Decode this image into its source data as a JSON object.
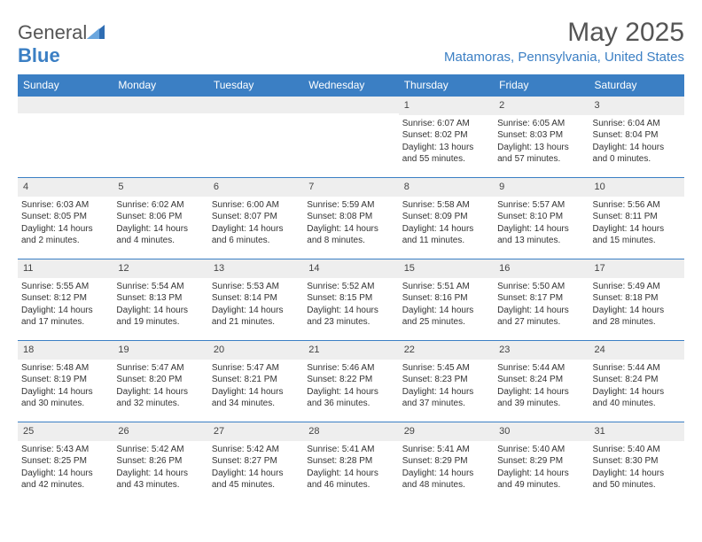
{
  "brand": {
    "name_part1": "General",
    "name_part2": "Blue"
  },
  "title": {
    "month": "May 2025",
    "location": "Matamoras, Pennsylvania, United States"
  },
  "colors": {
    "accent": "#3b7fc4",
    "header_text": "#ffffff",
    "daynum_bg": "#eeeeee",
    "text": "#333333"
  },
  "daynames": [
    "Sunday",
    "Monday",
    "Tuesday",
    "Wednesday",
    "Thursday",
    "Friday",
    "Saturday"
  ],
  "weeks": [
    [
      {
        "n": "",
        "sunrise": "",
        "sunset": "",
        "daylight": ""
      },
      {
        "n": "",
        "sunrise": "",
        "sunset": "",
        "daylight": ""
      },
      {
        "n": "",
        "sunrise": "",
        "sunset": "",
        "daylight": ""
      },
      {
        "n": "",
        "sunrise": "",
        "sunset": "",
        "daylight": ""
      },
      {
        "n": "1",
        "sunrise": "Sunrise: 6:07 AM",
        "sunset": "Sunset: 8:02 PM",
        "daylight": "Daylight: 13 hours and 55 minutes."
      },
      {
        "n": "2",
        "sunrise": "Sunrise: 6:05 AM",
        "sunset": "Sunset: 8:03 PM",
        "daylight": "Daylight: 13 hours and 57 minutes."
      },
      {
        "n": "3",
        "sunrise": "Sunrise: 6:04 AM",
        "sunset": "Sunset: 8:04 PM",
        "daylight": "Daylight: 14 hours and 0 minutes."
      }
    ],
    [
      {
        "n": "4",
        "sunrise": "Sunrise: 6:03 AM",
        "sunset": "Sunset: 8:05 PM",
        "daylight": "Daylight: 14 hours and 2 minutes."
      },
      {
        "n": "5",
        "sunrise": "Sunrise: 6:02 AM",
        "sunset": "Sunset: 8:06 PM",
        "daylight": "Daylight: 14 hours and 4 minutes."
      },
      {
        "n": "6",
        "sunrise": "Sunrise: 6:00 AM",
        "sunset": "Sunset: 8:07 PM",
        "daylight": "Daylight: 14 hours and 6 minutes."
      },
      {
        "n": "7",
        "sunrise": "Sunrise: 5:59 AM",
        "sunset": "Sunset: 8:08 PM",
        "daylight": "Daylight: 14 hours and 8 minutes."
      },
      {
        "n": "8",
        "sunrise": "Sunrise: 5:58 AM",
        "sunset": "Sunset: 8:09 PM",
        "daylight": "Daylight: 14 hours and 11 minutes."
      },
      {
        "n": "9",
        "sunrise": "Sunrise: 5:57 AM",
        "sunset": "Sunset: 8:10 PM",
        "daylight": "Daylight: 14 hours and 13 minutes."
      },
      {
        "n": "10",
        "sunrise": "Sunrise: 5:56 AM",
        "sunset": "Sunset: 8:11 PM",
        "daylight": "Daylight: 14 hours and 15 minutes."
      }
    ],
    [
      {
        "n": "11",
        "sunrise": "Sunrise: 5:55 AM",
        "sunset": "Sunset: 8:12 PM",
        "daylight": "Daylight: 14 hours and 17 minutes."
      },
      {
        "n": "12",
        "sunrise": "Sunrise: 5:54 AM",
        "sunset": "Sunset: 8:13 PM",
        "daylight": "Daylight: 14 hours and 19 minutes."
      },
      {
        "n": "13",
        "sunrise": "Sunrise: 5:53 AM",
        "sunset": "Sunset: 8:14 PM",
        "daylight": "Daylight: 14 hours and 21 minutes."
      },
      {
        "n": "14",
        "sunrise": "Sunrise: 5:52 AM",
        "sunset": "Sunset: 8:15 PM",
        "daylight": "Daylight: 14 hours and 23 minutes."
      },
      {
        "n": "15",
        "sunrise": "Sunrise: 5:51 AM",
        "sunset": "Sunset: 8:16 PM",
        "daylight": "Daylight: 14 hours and 25 minutes."
      },
      {
        "n": "16",
        "sunrise": "Sunrise: 5:50 AM",
        "sunset": "Sunset: 8:17 PM",
        "daylight": "Daylight: 14 hours and 27 minutes."
      },
      {
        "n": "17",
        "sunrise": "Sunrise: 5:49 AM",
        "sunset": "Sunset: 8:18 PM",
        "daylight": "Daylight: 14 hours and 28 minutes."
      }
    ],
    [
      {
        "n": "18",
        "sunrise": "Sunrise: 5:48 AM",
        "sunset": "Sunset: 8:19 PM",
        "daylight": "Daylight: 14 hours and 30 minutes."
      },
      {
        "n": "19",
        "sunrise": "Sunrise: 5:47 AM",
        "sunset": "Sunset: 8:20 PM",
        "daylight": "Daylight: 14 hours and 32 minutes."
      },
      {
        "n": "20",
        "sunrise": "Sunrise: 5:47 AM",
        "sunset": "Sunset: 8:21 PM",
        "daylight": "Daylight: 14 hours and 34 minutes."
      },
      {
        "n": "21",
        "sunrise": "Sunrise: 5:46 AM",
        "sunset": "Sunset: 8:22 PM",
        "daylight": "Daylight: 14 hours and 36 minutes."
      },
      {
        "n": "22",
        "sunrise": "Sunrise: 5:45 AM",
        "sunset": "Sunset: 8:23 PM",
        "daylight": "Daylight: 14 hours and 37 minutes."
      },
      {
        "n": "23",
        "sunrise": "Sunrise: 5:44 AM",
        "sunset": "Sunset: 8:24 PM",
        "daylight": "Daylight: 14 hours and 39 minutes."
      },
      {
        "n": "24",
        "sunrise": "Sunrise: 5:44 AM",
        "sunset": "Sunset: 8:24 PM",
        "daylight": "Daylight: 14 hours and 40 minutes."
      }
    ],
    [
      {
        "n": "25",
        "sunrise": "Sunrise: 5:43 AM",
        "sunset": "Sunset: 8:25 PM",
        "daylight": "Daylight: 14 hours and 42 minutes."
      },
      {
        "n": "26",
        "sunrise": "Sunrise: 5:42 AM",
        "sunset": "Sunset: 8:26 PM",
        "daylight": "Daylight: 14 hours and 43 minutes."
      },
      {
        "n": "27",
        "sunrise": "Sunrise: 5:42 AM",
        "sunset": "Sunset: 8:27 PM",
        "daylight": "Daylight: 14 hours and 45 minutes."
      },
      {
        "n": "28",
        "sunrise": "Sunrise: 5:41 AM",
        "sunset": "Sunset: 8:28 PM",
        "daylight": "Daylight: 14 hours and 46 minutes."
      },
      {
        "n": "29",
        "sunrise": "Sunrise: 5:41 AM",
        "sunset": "Sunset: 8:29 PM",
        "daylight": "Daylight: 14 hours and 48 minutes."
      },
      {
        "n": "30",
        "sunrise": "Sunrise: 5:40 AM",
        "sunset": "Sunset: 8:29 PM",
        "daylight": "Daylight: 14 hours and 49 minutes."
      },
      {
        "n": "31",
        "sunrise": "Sunrise: 5:40 AM",
        "sunset": "Sunset: 8:30 PM",
        "daylight": "Daylight: 14 hours and 50 minutes."
      }
    ]
  ]
}
